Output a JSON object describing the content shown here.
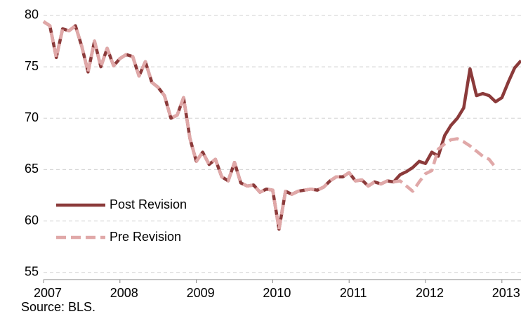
{
  "chart_data": {
    "type": "line",
    "source": "Source: BLS.",
    "xlim": [
      2007,
      2013.25
    ],
    "xticks": [
      2007,
      2008,
      2009,
      2010,
      2011,
      2012,
      2013
    ],
    "ylim": [
      54.3,
      81.5
    ],
    "yticks": [
      55,
      60,
      65,
      70,
      75,
      80
    ],
    "grid": true,
    "x": [
      2007,
      2007.083,
      2007.167,
      2007.25,
      2007.333,
      2007.417,
      2007.5,
      2007.583,
      2007.667,
      2007.75,
      2007.833,
      2007.917,
      2008,
      2008.083,
      2008.167,
      2008.25,
      2008.333,
      2008.417,
      2008.5,
      2008.583,
      2008.667,
      2008.75,
      2008.833,
      2008.917,
      2009,
      2009.083,
      2009.167,
      2009.25,
      2009.333,
      2009.417,
      2009.5,
      2009.583,
      2009.667,
      2009.75,
      2009.833,
      2009.917,
      2010,
      2010.083,
      2010.167,
      2010.25,
      2010.333,
      2010.417,
      2010.5,
      2010.583,
      2010.667,
      2010.75,
      2010.833,
      2010.917,
      2011,
      2011.083,
      2011.167,
      2011.25,
      2011.333,
      2011.417,
      2011.5,
      2011.583,
      2011.667,
      2011.75,
      2011.833,
      2011.917,
      2012,
      2012.083,
      2012.167,
      2012.25,
      2012.333,
      2012.417,
      2012.5,
      2012.583,
      2012.667,
      2012.75,
      2012.833,
      2012.917,
      2013,
      2013.083,
      2013.167,
      2013.25
    ],
    "series": [
      {
        "name": "Post Revision",
        "color": "#8b3a3a",
        "dash": false,
        "values": [
          79.4,
          79.0,
          75.9,
          78.7,
          78.5,
          79.0,
          77.0,
          74.5,
          77.5,
          75.0,
          76.8,
          75.1,
          75.8,
          76.2,
          76.0,
          74.1,
          75.5,
          73.5,
          73.0,
          72.2,
          70.0,
          70.3,
          72.0,
          68.0,
          65.8,
          66.7,
          65.5,
          66.0,
          64.3,
          63.9,
          65.7,
          63.7,
          63.4,
          63.5,
          62.8,
          63.1,
          63.0,
          59.2,
          62.9,
          62.6,
          62.9,
          63.0,
          63.1,
          63.0,
          63.3,
          63.9,
          64.3,
          64.3,
          64.7,
          63.9,
          64.0,
          63.4,
          63.8,
          63.6,
          63.9,
          63.8,
          64.5,
          64.8,
          65.2,
          65.8,
          65.6,
          66.7,
          66.3,
          68.3,
          69.3,
          70.0,
          71.0,
          74.8,
          72.2,
          72.4,
          72.2,
          71.6,
          72.0,
          73.5,
          74.9,
          75.6
        ]
      },
      {
        "name": "Pre Revision",
        "color": "#e0a8a8",
        "dash": true,
        "values": [
          79.4,
          79.0,
          75.9,
          78.7,
          78.5,
          79.0,
          77.0,
          74.5,
          77.5,
          75.0,
          76.8,
          75.1,
          75.8,
          76.2,
          76.0,
          74.1,
          75.5,
          73.5,
          73.0,
          72.2,
          70.0,
          70.3,
          72.0,
          68.0,
          65.8,
          66.7,
          65.5,
          66.0,
          64.3,
          63.9,
          65.7,
          63.7,
          63.4,
          63.5,
          62.8,
          63.1,
          63.0,
          59.2,
          62.9,
          62.6,
          62.9,
          63.0,
          63.1,
          63.0,
          63.3,
          63.9,
          64.3,
          64.3,
          64.7,
          63.9,
          64.0,
          63.4,
          63.8,
          63.6,
          63.9,
          63.8,
          63.9,
          63.4,
          62.9,
          63.8,
          64.6,
          64.9,
          67.0,
          67.5,
          67.9,
          68.0,
          67.7,
          67.3,
          66.8,
          66.3,
          66.0,
          65.2,
          null,
          null,
          null,
          null
        ]
      }
    ]
  }
}
